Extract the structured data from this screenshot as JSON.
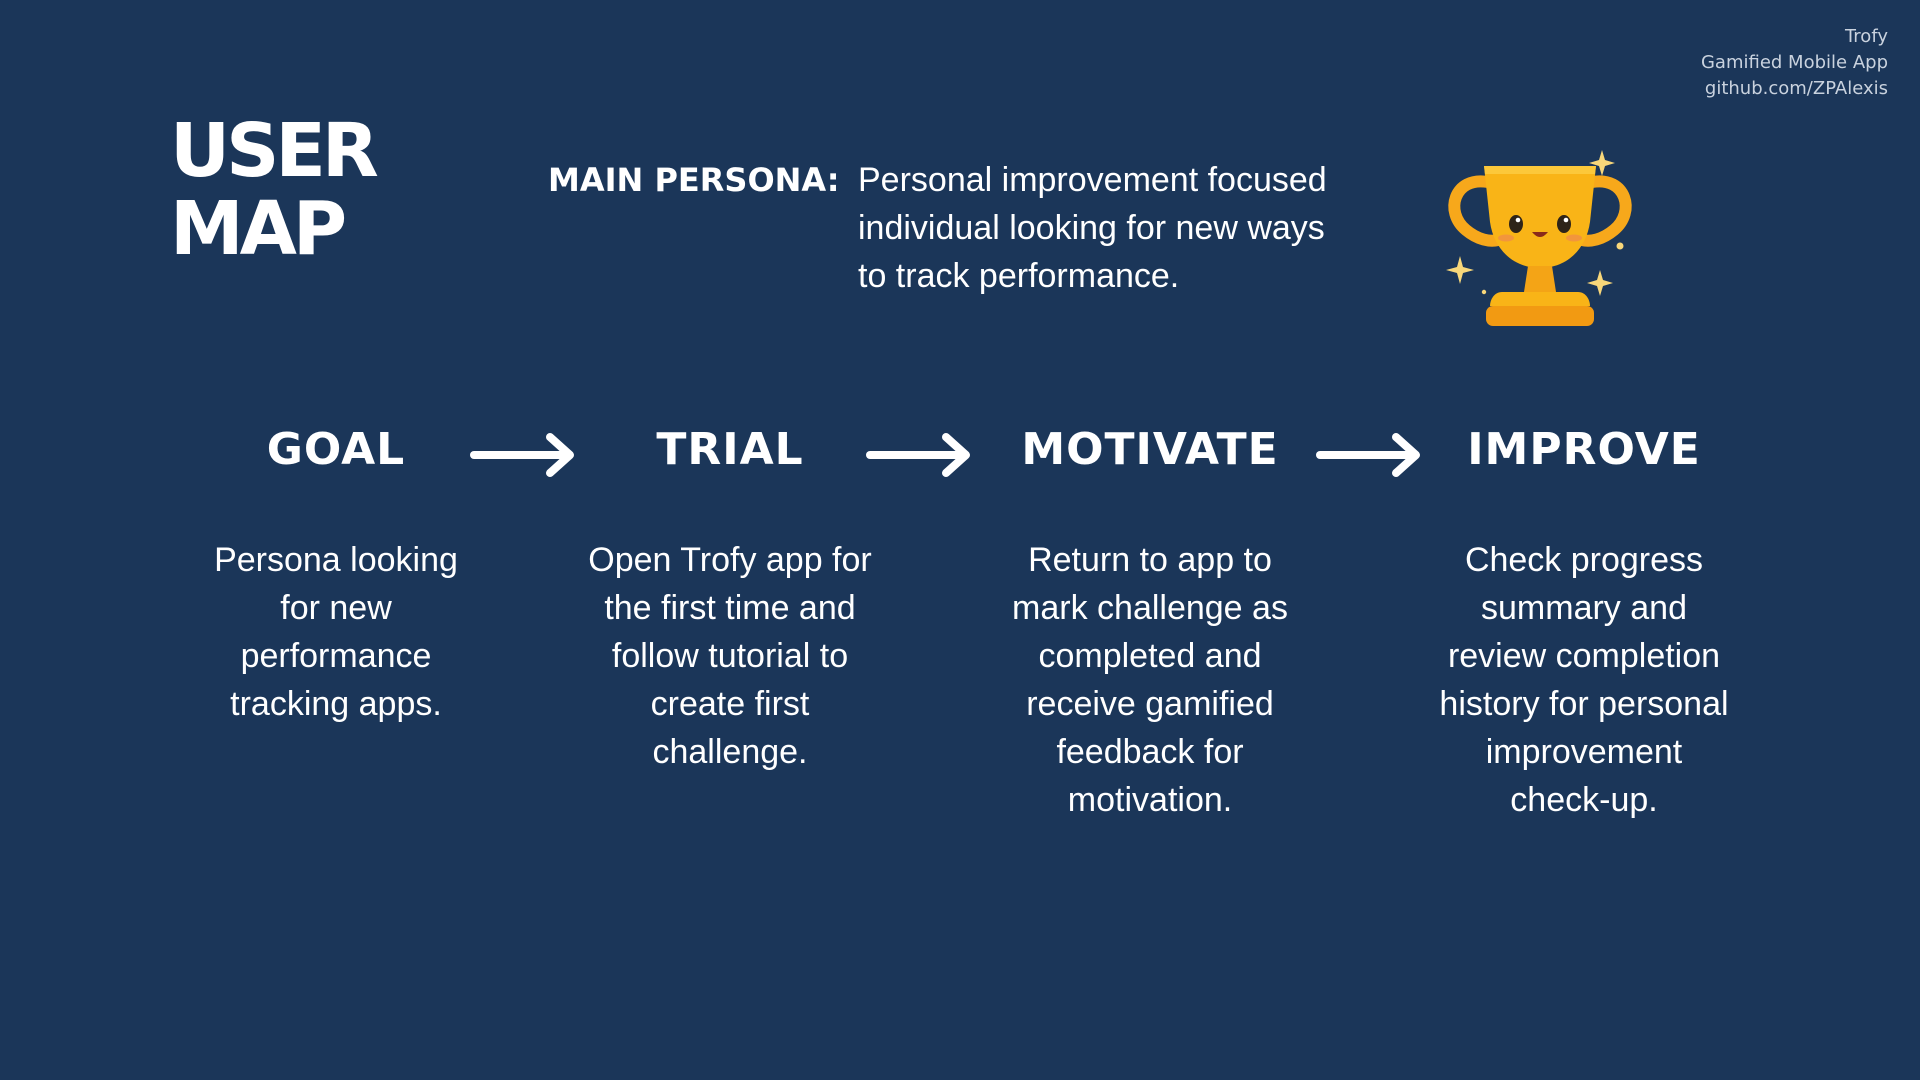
{
  "credits": {
    "app_name": "Trofy",
    "subtitle": "Gamified Mobile App",
    "link": "github.com/ZPAlexis"
  },
  "title": {
    "line1": "USER",
    "line2": "MAP"
  },
  "persona": {
    "label": "MAIN PERSONA:",
    "line1": "Personal improvement focused",
    "line2": "individual looking for new ways",
    "line3": "to track performance."
  },
  "icons": {
    "trophy": "trophy-icon",
    "arrow": "arrow-right-icon"
  },
  "colors": {
    "background": "#1b3659",
    "text": "#ffffff",
    "trophy_gold": "#f9b417",
    "sparkle": "#f8d77a"
  },
  "steps": [
    {
      "title": "GOAL",
      "lines": [
        "Persona looking",
        "for new",
        "performance",
        "tracking apps."
      ]
    },
    {
      "title": "TRIAL",
      "lines": [
        "Open Trofy app for",
        "the first time and",
        "follow tutorial to",
        "create first",
        "challenge."
      ]
    },
    {
      "title": "MOTIVATE",
      "lines": [
        "Return to app to",
        "mark challenge as",
        "completed and",
        "receive gamified",
        "feedback for",
        "motivation."
      ]
    },
    {
      "title": "IMPROVE",
      "lines": [
        "Check progress",
        "summary and",
        "review completion",
        "history for personal",
        "improvement",
        "check-up."
      ]
    }
  ]
}
